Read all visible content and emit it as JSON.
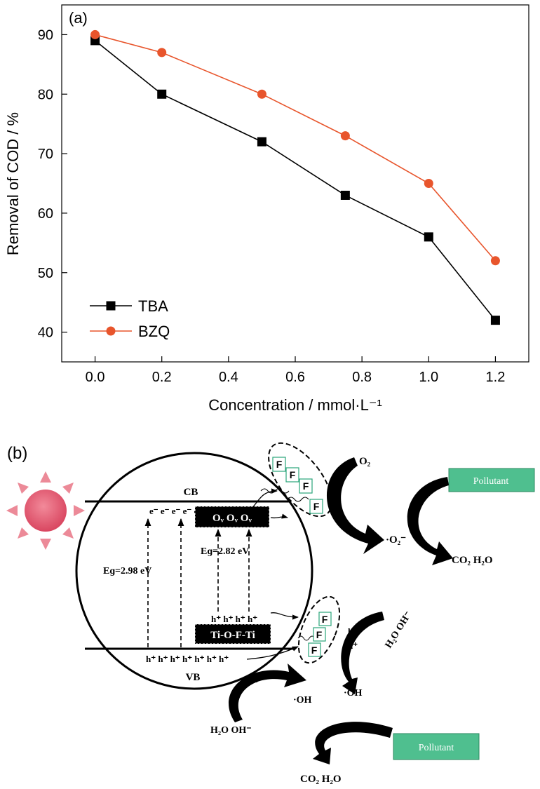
{
  "panel_a": {
    "label": "(a)",
    "chart_data": {
      "type": "line",
      "x": [
        0.0,
        0.2,
        0.5,
        0.75,
        1.0,
        1.2
      ],
      "series": [
        {
          "name": "TBA",
          "values": [
            89,
            80,
            72,
            63,
            56,
            42
          ],
          "color": "#000000",
          "marker": "square"
        },
        {
          "name": "BZQ",
          "values": [
            90,
            87,
            80,
            73,
            65,
            52
          ],
          "color": "#e8552c",
          "marker": "circle"
        }
      ],
      "xlabel": "Concentration / mmol·L⁻¹",
      "ylabel": "Removal of COD / %",
      "xlim": [
        -0.1,
        1.3
      ],
      "ylim": [
        35,
        95
      ],
      "xticks": [
        "0.0",
        "0.2",
        "0.4",
        "0.6",
        "0.8",
        "1.0",
        "1.2"
      ],
      "xtick_values": [
        0.0,
        0.2,
        0.4,
        0.6,
        0.8,
        1.0,
        1.2
      ],
      "yticks": [
        "40",
        "50",
        "60",
        "70",
        "80",
        "90"
      ],
      "ytick_values": [
        40,
        50,
        60,
        70,
        80,
        90
      ],
      "grid": false,
      "legend": "bottom-left"
    }
  },
  "panel_b": {
    "label": "(b)",
    "cb": "CB",
    "vb": "VB",
    "electrons": "e⁻  e⁻  e⁻  e⁻  e⁻  e⁻  e⁻",
    "holes_vb": "h⁺ h⁺ h⁺ h⁺ h⁺ h⁺ h⁺",
    "holes_mid": "h⁺  h⁺  h⁺  h⁺",
    "ov_box": "Oᵥ Oᵥ Oᵥ",
    "tiofti_box": "Ti-O-F-Ti",
    "eg1": "Eɡ=2.98 eV",
    "eg2": "Eɡ=2.82 eV",
    "f_label": "F",
    "o2": "O₂",
    "e_minus": "e⁻",
    "superoxide": "·O₂⁻",
    "co2h2o": "CO₂ H₂O",
    "pollutant": "Pollutant",
    "h2o_oh": "H₂O OH⁻",
    "h_plus": "h⁺",
    "oh_radical": "·OH",
    "colors": {
      "pollutant_box": "#4fbf8f",
      "sun": "#e0566a",
      "sun_ray": "#ec8a98"
    }
  }
}
